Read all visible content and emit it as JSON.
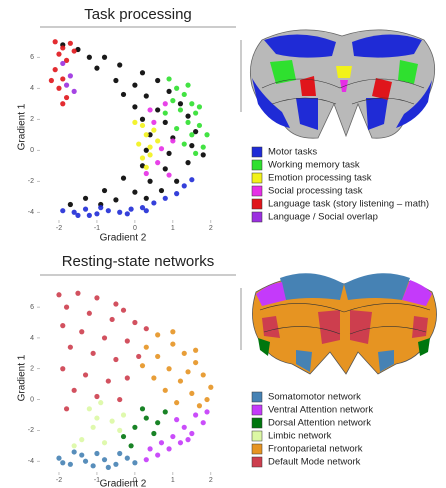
{
  "chart_data": [
    {
      "type": "scatter",
      "title": "Task processing",
      "xlabel": "Gradient 2",
      "ylabel": "Gradient 1",
      "xlim": [
        -2.5,
        2.4
      ],
      "ylim": [
        -4.5,
        7.5
      ],
      "xticks": [
        -2,
        -1,
        0,
        1,
        2
      ],
      "yticks": [
        -4,
        -2,
        0,
        2,
        4,
        6
      ],
      "series": [
        {
          "color": "#000000",
          "x": [
            -1.9,
            -1.5,
            -1.2,
            -0.8,
            -1.0,
            -0.4,
            0.2,
            -0.5,
            0.0,
            0.6,
            -0.3,
            0.3,
            0.9,
            0.0,
            0.6,
            1.2,
            0.2,
            0.8,
            1.4,
            0.4,
            1.0,
            1.6,
            0.3,
            0.9,
            1.5,
            0.2,
            0.8,
            1.4,
            -0.3,
            0.4,
            1.1,
            -0.8,
            0.0,
            0.7,
            -1.3,
            -0.5,
            0.3,
            -1.7,
            -0.9,
            1.8
          ],
          "y": [
            6.8,
            6.5,
            6.0,
            6.0,
            5.3,
            5.5,
            5.0,
            4.5,
            4.2,
            4.5,
            3.6,
            3.5,
            3.8,
            2.8,
            2.6,
            3.0,
            2.0,
            1.8,
            2.2,
            1.0,
            0.8,
            1.2,
            0.0,
            -0.2,
            0.3,
            -1.0,
            -1.2,
            -0.8,
            -1.8,
            -2.0,
            -2.0,
            -2.6,
            -2.7,
            -2.6,
            -3.1,
            -3.2,
            -3.1,
            -3.5,
            -3.5,
            -0.3
          ]
        },
        {
          "name": "Motor tasks",
          "color": "#1f2bd6",
          "x": [
            -1.9,
            -1.6,
            -1.3,
            -1.0,
            -0.7,
            -0.4,
            -0.1,
            0.2,
            0.5,
            0.8,
            1.1,
            -1.5,
            -0.9,
            -0.2,
            0.3,
            1.3,
            1.5,
            -1.2
          ],
          "y": [
            -3.9,
            -4.0,
            -3.8,
            -4.1,
            -3.9,
            -4.0,
            -3.8,
            -3.7,
            -3.4,
            -3.1,
            -2.8,
            -4.2,
            -3.7,
            -4.1,
            -3.9,
            -2.3,
            -1.9,
            -4.2
          ]
        },
        {
          "name": "Working memory task",
          "color": "#2fe02f",
          "x": [
            0.9,
            1.1,
            1.3,
            1.5,
            1.0,
            1.2,
            1.6,
            1.4,
            1.7,
            1.9,
            1.5,
            1.8,
            1.6,
            1.3,
            1.1,
            0.8,
            1.4,
            1.7
          ],
          "y": [
            4.6,
            4.0,
            3.6,
            3.0,
            3.2,
            2.6,
            2.4,
            1.8,
            1.6,
            1.0,
            1.0,
            0.2,
            -0.2,
            0.4,
            1.4,
            2.4,
            4.2,
            2.8
          ]
        },
        {
          "name": "Emotion processing task",
          "color": "#f2f21a",
          "x": [
            0.2,
            0.3,
            0.1,
            0.4,
            0.2,
            0.3,
            0.5,
            0.0,
            0.4,
            0.6
          ],
          "y": [
            1.6,
            1.0,
            0.4,
            0.2,
            -0.5,
            -1.1,
            1.3,
            1.8,
            -0.3,
            0.6
          ]
        },
        {
          "name": "Social processing task",
          "color": "#e62ee6",
          "x": [
            0.5,
            0.7,
            0.6,
            0.9,
            0.4,
            1.0,
            0.8,
            0.3
          ],
          "y": [
            1.8,
            0.1,
            -0.8,
            -1.6,
            2.6,
            0.6,
            3.0,
            -1.5
          ]
        },
        {
          "name": "Language task (story listening – math)",
          "color": "#e0151b",
          "x": [
            -2.1,
            -1.9,
            -2.0,
            -1.8,
            -2.1,
            -1.9,
            -2.0,
            -1.8,
            -1.7,
            -1.6,
            -2.2,
            -1.9
          ],
          "y": [
            7.0,
            6.6,
            6.2,
            5.8,
            5.2,
            4.6,
            4.0,
            3.4,
            6.9,
            6.4,
            4.5,
            3.0
          ]
        },
        {
          "name": "Language / Social overlap",
          "color": "#9b30e0",
          "x": [
            -1.7,
            -1.9,
            -1.8,
            -1.6
          ],
          "y": [
            4.8,
            5.6,
            4.2,
            3.8
          ]
        }
      ]
    },
    {
      "type": "scatter",
      "title": "Resting-state networks",
      "xlabel": "Gradient 2",
      "ylabel": "Gradient 1",
      "xlim": [
        -2.5,
        2.4
      ],
      "ylim": [
        -4.7,
        7.5
      ],
      "xticks": [
        -2,
        -1,
        0,
        1,
        2
      ],
      "yticks": [
        -4,
        -2,
        0,
        2,
        4,
        6
      ],
      "series": [
        {
          "name": "Somatomotor network",
          "color": "#4682b4",
          "x": [
            -2.0,
            -1.7,
            -1.4,
            -1.1,
            -0.8,
            -0.5,
            -0.2,
            -1.6,
            -1.0,
            -0.4,
            0.0,
            -1.3,
            -0.7,
            -1.9
          ],
          "y": [
            -3.8,
            -4.2,
            -3.6,
            -4.3,
            -3.9,
            -4.2,
            -3.8,
            -3.4,
            -3.5,
            -3.5,
            -4.1,
            -4.0,
            -4.4,
            -4.1
          ]
        },
        {
          "name": "Ventral Attention network",
          "color": "#c43afa",
          "x": [
            0.6,
            0.9,
            1.2,
            1.5,
            1.8,
            1.3,
            1.0,
            0.7,
            0.3,
            1.6,
            1.9,
            1.1,
            0.4,
            1.4
          ],
          "y": [
            -3.6,
            -3.2,
            -2.8,
            -2.2,
            -1.5,
            -1.8,
            -2.4,
            -2.8,
            -3.9,
            -1.0,
            -0.8,
            -1.3,
            -3.2,
            -2.6
          ]
        },
        {
          "name": "Dorsal Attention network",
          "color": "#00760e",
          "x": [
            -0.3,
            0.0,
            0.3,
            0.5,
            0.2,
            -0.1,
            0.6,
            0.8
          ],
          "y": [
            -2.4,
            -1.8,
            -1.2,
            -2.2,
            -0.6,
            -3.0,
            -1.5,
            -0.8
          ]
        },
        {
          "name": "Limbic network",
          "color": "#dcf8a4",
          "x": [
            -1.4,
            -1.1,
            -0.8,
            -0.6,
            -1.2,
            -0.4,
            -0.9,
            -1.6,
            -0.3,
            -1.0
          ],
          "y": [
            -2.6,
            -1.8,
            -2.8,
            -1.4,
            -0.6,
            -2.0,
            -0.2,
            -3.0,
            -1.0,
            -1.2
          ]
        },
        {
          "name": "Frontoparietal network",
          "color": "#e69422",
          "x": [
            0.6,
            1.0,
            1.3,
            1.6,
            1.8,
            2.0,
            1.9,
            1.5,
            1.2,
            0.9,
            0.6,
            0.3,
            1.4,
            1.7,
            0.8,
            0.5,
            1.1,
            0.2,
            1.0,
            1.6
          ],
          "y": [
            4.2,
            3.6,
            3.0,
            2.4,
            1.6,
            0.8,
            0.0,
            0.4,
            1.2,
            2.0,
            2.8,
            3.4,
            1.8,
            -0.4,
            0.6,
            1.4,
            -0.2,
            2.2,
            4.4,
            3.2
          ]
        },
        {
          "name": "Default Mode network",
          "color": "#cd3e4e",
          "x": [
            -2.0,
            -1.5,
            -1.0,
            -0.5,
            -1.8,
            -1.2,
            -0.6,
            0.0,
            -1.9,
            -1.4,
            -0.8,
            -0.2,
            -1.7,
            -1.1,
            -0.5,
            0.1,
            -1.9,
            -1.3,
            -0.7,
            -0.2,
            -1.6,
            -1.0,
            -0.4,
            -1.8,
            0.3,
            -0.3
          ],
          "y": [
            6.8,
            6.9,
            6.6,
            6.2,
            6.0,
            5.6,
            5.2,
            5.0,
            4.8,
            4.4,
            4.0,
            3.8,
            3.4,
            3.0,
            2.6,
            2.8,
            2.0,
            1.6,
            1.2,
            1.4,
            0.6,
            0.2,
            0.0,
            -0.6,
            4.6,
            5.8
          ]
        }
      ]
    }
  ]
}
